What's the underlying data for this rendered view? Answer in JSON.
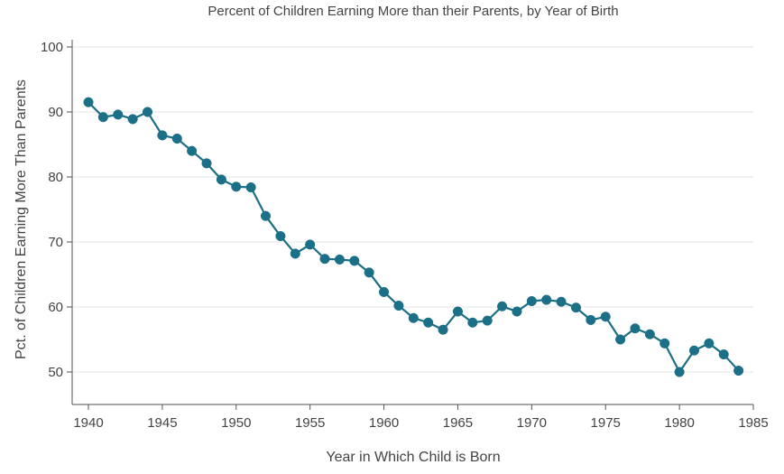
{
  "chart_data": {
    "type": "line",
    "title": "Percent of Children Earning More than their Parents, by Year of Birth",
    "xlabel": "Year in Which Child is Born",
    "ylabel": "Pct. of Children Earning More Than Parents",
    "xlim": [
      1940,
      1985
    ],
    "ylim": [
      45,
      100
    ],
    "xticks": [
      1940,
      1945,
      1950,
      1955,
      1960,
      1965,
      1970,
      1975,
      1980,
      1985
    ],
    "yticks": [
      50,
      60,
      70,
      80,
      90,
      100
    ],
    "grid": true,
    "series": [
      {
        "name": "Pct. of Children Earning More Than Parents",
        "color": "#1b6f86",
        "x": [
          1940,
          1941,
          1942,
          1943,
          1944,
          1945,
          1946,
          1947,
          1948,
          1949,
          1950,
          1951,
          1952,
          1953,
          1954,
          1955,
          1956,
          1957,
          1958,
          1959,
          1960,
          1961,
          1962,
          1963,
          1964,
          1965,
          1966,
          1967,
          1968,
          1969,
          1970,
          1971,
          1972,
          1973,
          1974,
          1975,
          1976,
          1977,
          1978,
          1979,
          1980,
          1981,
          1982,
          1983,
          1984
        ],
        "y": [
          91.5,
          89.2,
          89.6,
          88.9,
          90.0,
          86.4,
          85.9,
          84.0,
          82.1,
          79.6,
          78.5,
          78.4,
          74.0,
          70.9,
          68.2,
          69.6,
          67.4,
          67.3,
          67.1,
          65.3,
          62.3,
          60.2,
          58.3,
          57.6,
          56.5,
          59.3,
          57.6,
          57.9,
          60.1,
          59.3,
          60.9,
          61.1,
          60.8,
          59.9,
          58.0,
          58.5,
          55.0,
          56.7,
          55.8,
          54.4,
          50.0,
          53.3,
          54.4,
          52.7,
          50.2
        ]
      }
    ]
  }
}
